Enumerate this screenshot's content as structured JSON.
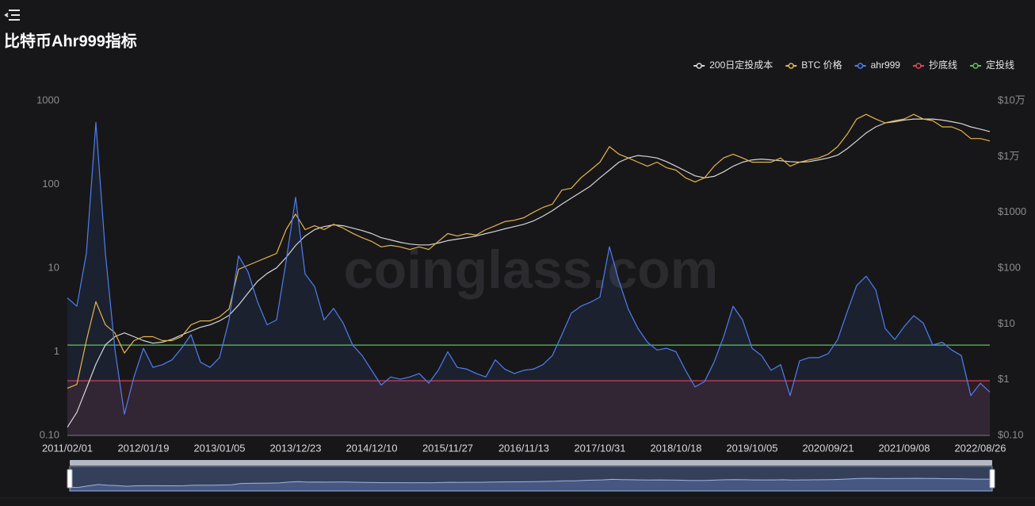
{
  "chart_data": {
    "type": "line",
    "title": "比特币Ahr999指标",
    "watermark": "coinglass.com",
    "log_scale": true,
    "grid": false,
    "categories": [
      "2011/02/01",
      null,
      null,
      null,
      null,
      null,
      null,
      null,
      "2012/01/19",
      null,
      null,
      null,
      null,
      null,
      null,
      null,
      "2013/01/05",
      null,
      null,
      null,
      null,
      null,
      null,
      null,
      "2013/12/23",
      null,
      null,
      null,
      null,
      null,
      null,
      null,
      "2014/12/10",
      null,
      null,
      null,
      null,
      null,
      null,
      null,
      "2015/11/27",
      null,
      null,
      null,
      null,
      null,
      null,
      null,
      "2016/11/13",
      null,
      null,
      null,
      null,
      null,
      null,
      null,
      "2017/10/31",
      null,
      null,
      null,
      null,
      null,
      null,
      null,
      "2018/10/18",
      null,
      null,
      null,
      null,
      null,
      null,
      null,
      "2019/10/05",
      null,
      null,
      null,
      null,
      null,
      null,
      null,
      "2020/09/21",
      null,
      null,
      null,
      null,
      null,
      null,
      null,
      "2021/09/08",
      null,
      null,
      null,
      null,
      null,
      null,
      null,
      "2022/08/26",
      null
    ],
    "ylim": [
      0.1,
      1000
    ],
    "yticks": [
      {
        "value": 0.1,
        "label": "0.10"
      },
      1,
      10,
      100,
      1000
    ],
    "y2lim": [
      0.1,
      100000
    ],
    "y2ticks": [
      {
        "value": 0.1,
        "label": "$0.10"
      },
      {
        "value": 1,
        "label": "$1"
      },
      {
        "value": 10,
        "label": "$10"
      },
      {
        "value": 100,
        "label": "$100"
      },
      {
        "value": 1000,
        "label": "$1000"
      },
      {
        "value": 10000,
        "label": "$1万"
      },
      {
        "value": 100000,
        "label": "$10万"
      }
    ],
    "series": [
      {
        "name": "200日定投成本",
        "color": "#d6d6d6",
        "axis": "y2",
        "values": [
          0.14,
          0.26,
          0.7,
          1.9,
          4.2,
          5.9,
          6.9,
          5.9,
          5,
          4.5,
          4.7,
          5.3,
          6.3,
          7.4,
          8.7,
          9.6,
          11.3,
          14.2,
          21.7,
          35.6,
          58,
          80,
          101,
          155,
          254,
          375,
          490,
          555,
          595,
          575,
          520,
          470,
          415,
          350,
          320,
          290,
          270,
          260,
          260,
          280,
          310,
          330,
          350,
          375,
          415,
          455,
          505,
          555,
          610,
          700,
          850,
          1070,
          1400,
          1800,
          2300,
          2950,
          4150,
          5700,
          7900,
          9400,
          10400,
          10000,
          9400,
          8100,
          6700,
          5500,
          4500,
          4150,
          4400,
          5300,
          6700,
          7900,
          8700,
          9000,
          8700,
          8400,
          8100,
          7900,
          8100,
          8700,
          9400,
          10600,
          13800,
          19000,
          26500,
          34000,
          40000,
          42000,
          45000,
          47000,
          47000,
          47000,
          45000,
          42000,
          39000,
          34000,
          31000,
          28000
        ]
      },
      {
        "name": "BTC 价格",
        "color": "#e6b54a",
        "axis": "y2",
        "values": [
          0.7,
          0.82,
          5,
          25,
          9.6,
          6.9,
          3,
          5,
          5.9,
          5.9,
          5,
          5,
          5.9,
          9.6,
          11.3,
          11.3,
          13.3,
          18.5,
          95,
          112,
          132,
          155,
          183,
          490,
          930,
          490,
          575,
          490,
          610,
          520,
          420,
          350,
          300,
          240,
          255,
          240,
          215,
          240,
          215,
          300,
          415,
          375,
          415,
          390,
          490,
          575,
          680,
          720,
          800,
          1000,
          1220,
          1400,
          2500,
          2700,
          4150,
          5700,
          7900,
          15000,
          11000,
          9400,
          7900,
          6700,
          7900,
          6300,
          5700,
          4150,
          3500,
          4150,
          6700,
          9400,
          11000,
          9400,
          7900,
          7900,
          7900,
          9400,
          6700,
          7900,
          8700,
          9400,
          11000,
          15000,
          25000,
          47000,
          57000,
          47000,
          40000,
          44000,
          47000,
          57000,
          47000,
          44000,
          34000,
          34000,
          29000,
          21000,
          21000,
          19000
        ]
      },
      {
        "name": "ahr999",
        "color": "#4f7ef0",
        "values": [
          4.4,
          3.5,
          15,
          550,
          15,
          1.07,
          0.18,
          0.5,
          1.1,
          0.65,
          0.7,
          0.8,
          1.1,
          1.6,
          0.75,
          0.65,
          0.85,
          2.4,
          14,
          9,
          3.95,
          2.1,
          2.4,
          12,
          70,
          8.5,
          6,
          2.4,
          3.3,
          2.2,
          1.2,
          0.9,
          0.6,
          0.4,
          0.5,
          0.47,
          0.5,
          0.55,
          0.42,
          0.6,
          1.0,
          0.65,
          0.62,
          0.55,
          0.5,
          0.8,
          0.62,
          0.55,
          0.6,
          0.62,
          0.7,
          0.9,
          1.6,
          2.9,
          3.5,
          3.9,
          4.5,
          18,
          7,
          3.2,
          1.9,
          1.3,
          1.05,
          1.1,
          1.0,
          0.6,
          0.38,
          0.44,
          0.75,
          1.5,
          3.5,
          2.4,
          1.1,
          0.9,
          0.6,
          0.7,
          0.3,
          0.78,
          0.85,
          0.85,
          0.95,
          1.4,
          3.0,
          6.2,
          8.0,
          5.5,
          1.9,
          1.4,
          2.0,
          2.7,
          2.2,
          1.2,
          1.3,
          1.05,
          0.9,
          0.3,
          0.42,
          0.33
        ]
      }
    ],
    "hlines": [
      {
        "name": "抄底线",
        "color": "#e2455c",
        "value": 0.45
      },
      {
        "name": "定投线",
        "color": "#5bc25b",
        "value": 1.2
      }
    ]
  }
}
